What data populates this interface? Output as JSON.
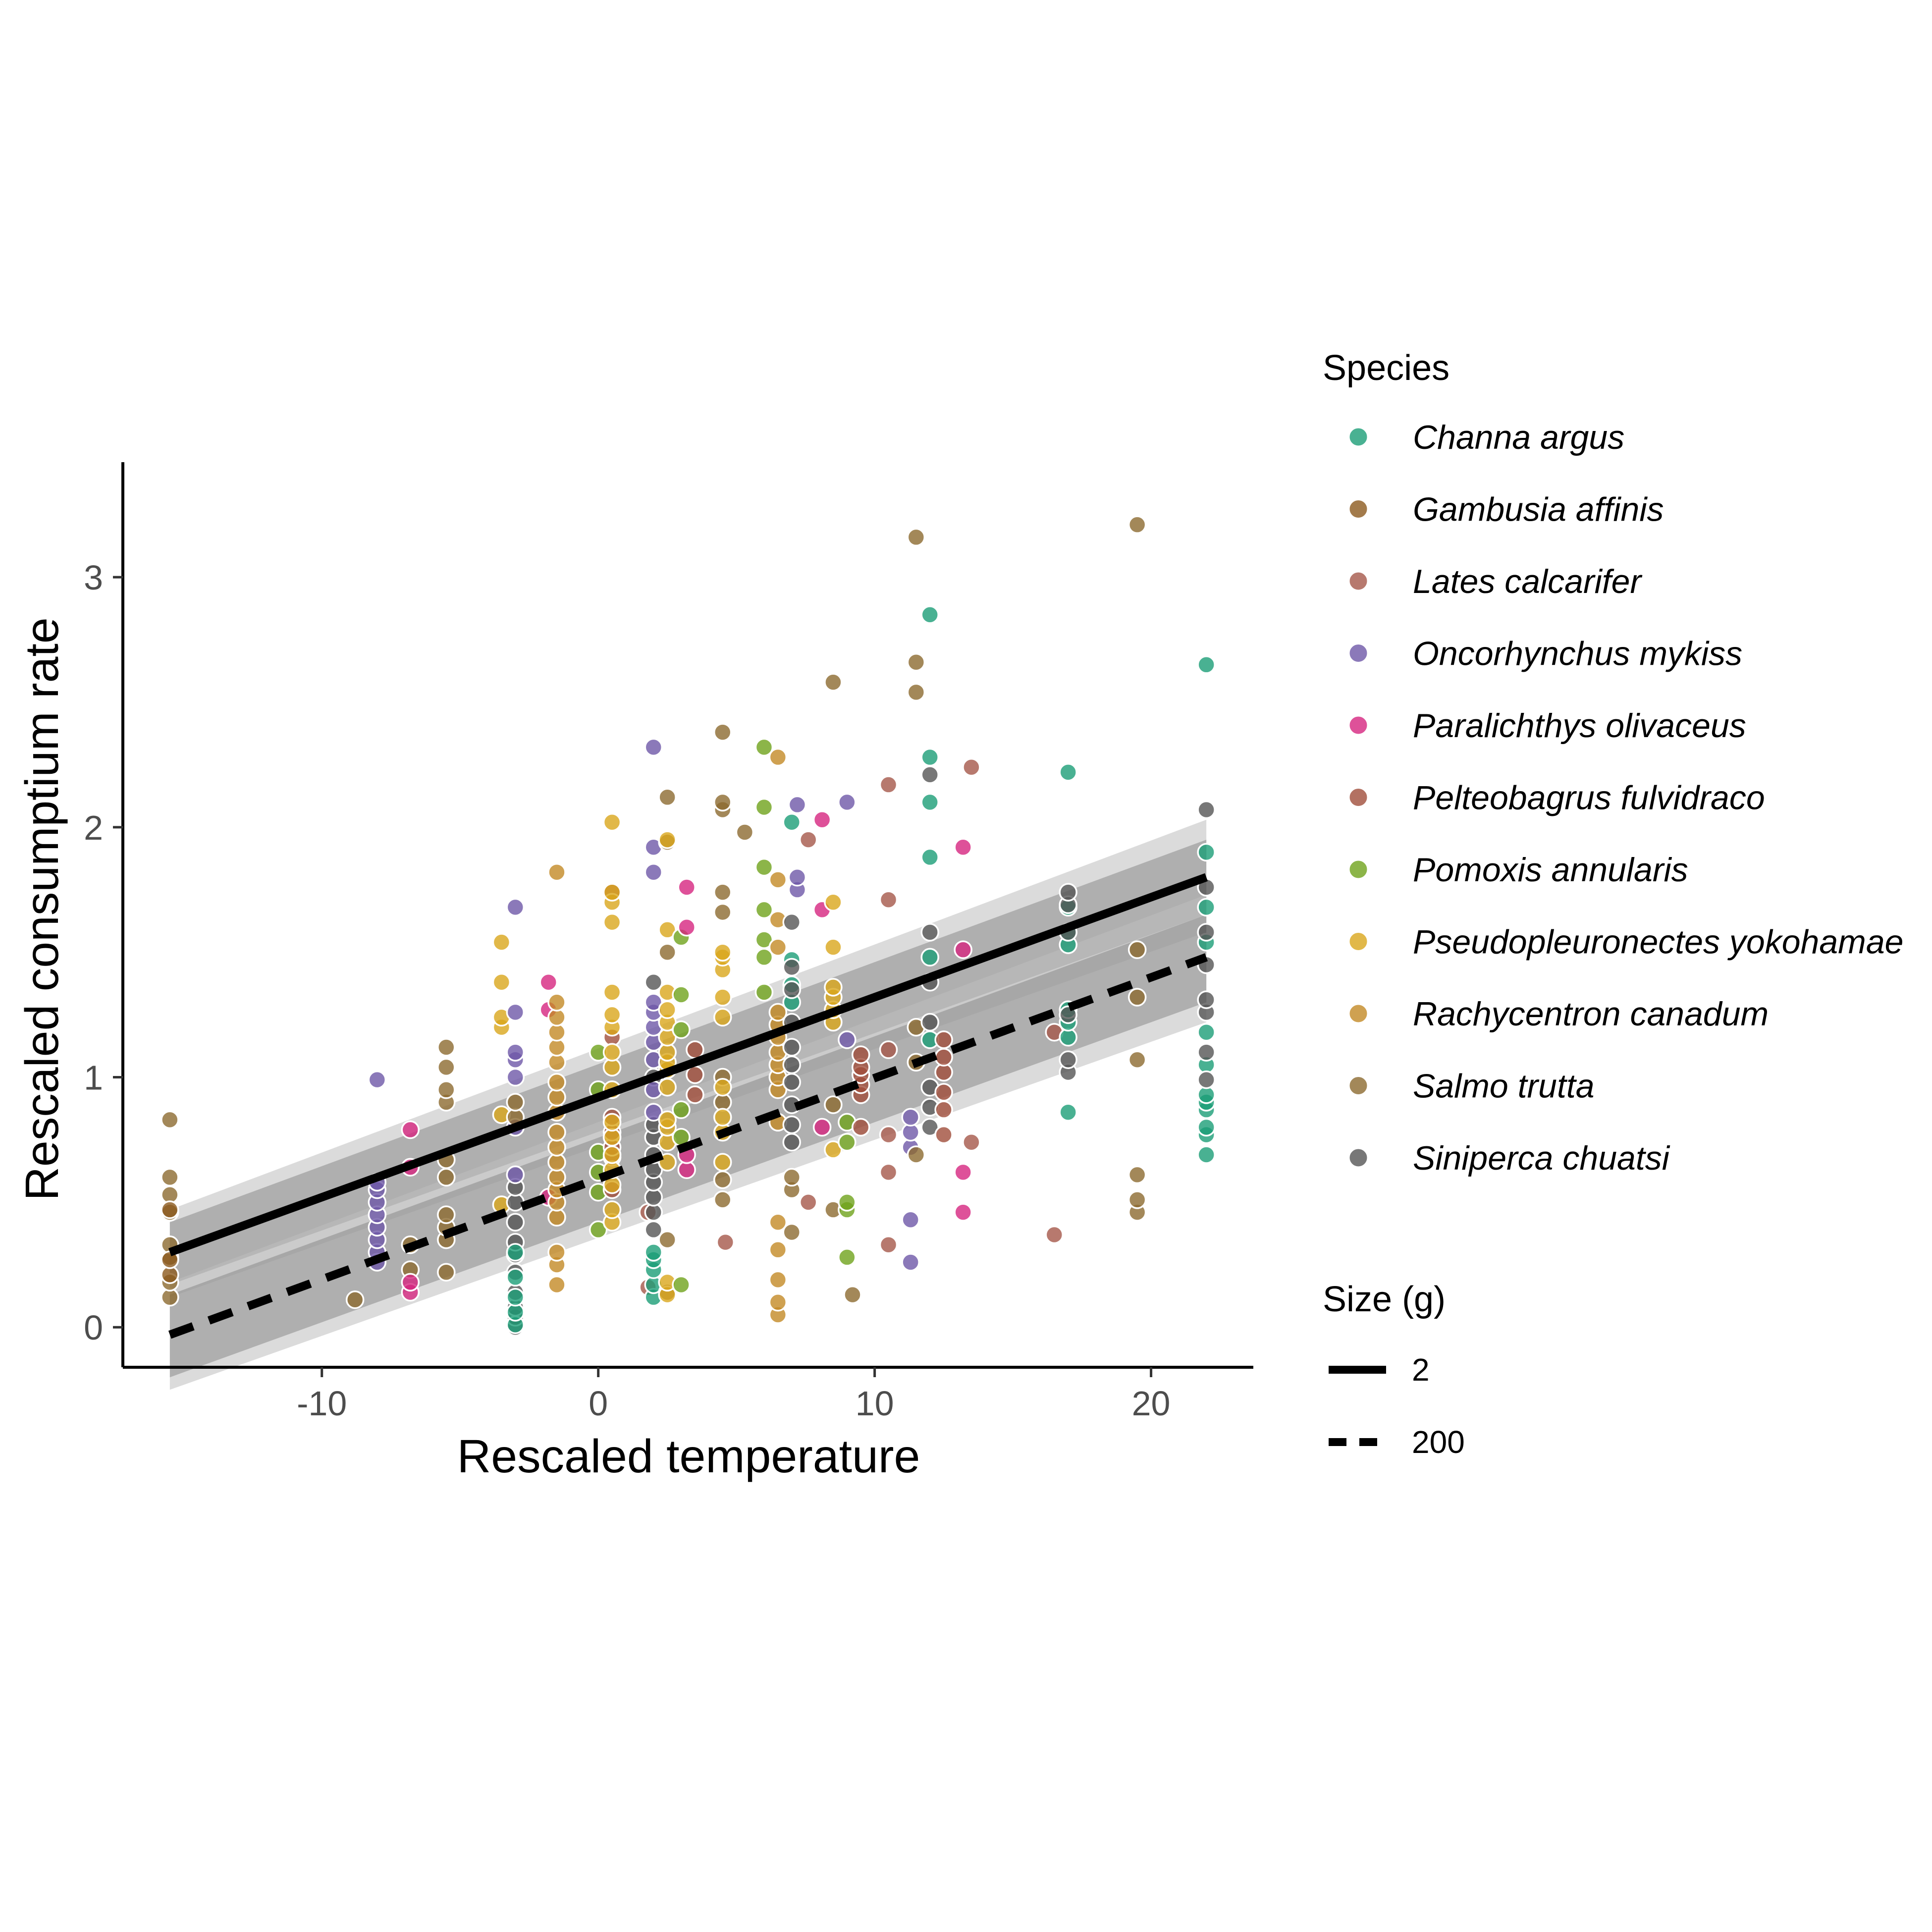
{
  "chart_data": {
    "type": "scatter",
    "xlabel": "Rescaled temperature",
    "ylabel": "Rescaled consumptium rate",
    "xlim": [
      -17.2,
      23.7
    ],
    "ylim": [
      -0.16,
      3.46
    ],
    "xticks": [
      -10,
      0,
      10,
      20
    ],
    "yticks": [
      0,
      1,
      2,
      3
    ],
    "grid": false,
    "legend_position": "right",
    "species_legend": {
      "title": "Species",
      "entries": [
        {
          "name": "Channa argus",
          "color": "#1b9e77"
        },
        {
          "name": "Gambusia affinis",
          "color": "#8c5a1e"
        },
        {
          "name": "Lates calcarifer",
          "color": "#a5584a"
        },
        {
          "name": "Oncorhynchus mykiss",
          "color": "#6e58a8"
        },
        {
          "name": "Paralichthys olivaceus",
          "color": "#d6257f"
        },
        {
          "name": "Pelteobagrus fulvidraco",
          "color": "#a04e3b"
        },
        {
          "name": "Pomoxis annularis",
          "color": "#6fa21c"
        },
        {
          "name": "Pseudopleuronectes yokohamae",
          "color": "#d9a61b"
        },
        {
          "name": "Rachycentron canadum",
          "color": "#c38925"
        },
        {
          "name": "Salmo trutta",
          "color": "#8c6a30"
        },
        {
          "name": "Siniperca chuatsi",
          "color": "#555555"
        }
      ]
    },
    "size_legend": {
      "title": "Size (g)",
      "entries": [
        {
          "label": "2",
          "linetype": "solid"
        },
        {
          "label": "200",
          "linetype": "dashed"
        }
      ]
    },
    "fit_lines": [
      {
        "size": "2",
        "linetype": "solid",
        "x": [
          -15.5,
          22
        ],
        "y": [
          0.3,
          1.8
        ],
        "ci_lower": [
          0.17,
          1.65
        ],
        "ci_upper": [
          0.42,
          1.95
        ],
        "ci_outer_lower": [
          0.12,
          1.58
        ],
        "ci_outer_upper": [
          0.47,
          2.03
        ]
      },
      {
        "size": "200",
        "linetype": "dashed",
        "x": [
          -15.5,
          22
        ],
        "y": [
          -0.03,
          1.48
        ],
        "ci_lower": [
          -0.2,
          1.3
        ],
        "ci_upper": [
          0.13,
          1.65
        ],
        "ci_outer_lower": [
          -0.25,
          1.22
        ],
        "ci_outer_upper": [
          0.18,
          1.73
        ]
      }
    ],
    "points": [
      {
        "species": "Salmo trutta",
        "x": -15.5,
        "y": [
          0.12,
          0.18,
          0.28,
          0.33,
          0.46,
          0.53,
          0.6,
          0.83
        ]
      },
      {
        "species": "Gambusia affinis",
        "x": -15.5,
        "y": [
          0.21,
          0.27,
          0.47
        ]
      },
      {
        "species": "Salmo trutta",
        "x": -8.8,
        "y": [
          0.11
        ]
      },
      {
        "species": "Oncorhynchus mykiss",
        "x": -8,
        "y": [
          0.26,
          0.3,
          0.35,
          0.4,
          0.45,
          0.5,
          0.55,
          0.58,
          0.99
        ]
      },
      {
        "species": "Salmo trutta",
        "x": -6.8,
        "y": [
          0.23,
          0.33
        ]
      },
      {
        "species": "Paralichthys olivaceus",
        "x": -6.8,
        "y": [
          0.14,
          0.18,
          0.64,
          0.79
        ]
      },
      {
        "species": "Salmo trutta",
        "x": -5.5,
        "y": [
          0.22,
          0.35,
          0.4,
          0.45,
          0.6,
          0.67,
          0.9,
          0.95,
          1.04,
          1.12
        ]
      },
      {
        "species": "Pseudopleuronectes yokohamae",
        "x": -3.5,
        "y": [
          0.49,
          0.85,
          1.2,
          1.24,
          1.38,
          1.54
        ]
      },
      {
        "species": "Siniperca chuatsi",
        "x": -3,
        "y": [
          0.0,
          0.04,
          0.08,
          0.14,
          0.22,
          0.29,
          0.34,
          0.42,
          0.5,
          0.56
        ]
      },
      {
        "species": "Channa argus",
        "x": -3,
        "y": [
          0.01,
          0.06,
          0.12,
          0.2,
          0.3
        ]
      },
      {
        "species": "Oncorhynchus mykiss",
        "x": -3,
        "y": [
          0.61,
          0.8,
          1.0,
          1.07,
          1.1,
          1.26,
          1.68
        ]
      },
      {
        "species": "Salmo trutta",
        "x": -3,
        "y": [
          0.84,
          0.9
        ]
      },
      {
        "species": "Paralichthys olivaceus",
        "x": -1.8,
        "y": [
          0.52,
          1.27,
          1.38
        ]
      },
      {
        "species": "Rachycentron canadum",
        "x": -1.5,
        "y": [
          0.17,
          0.25,
          0.3,
          0.44,
          0.5,
          0.55,
          0.6,
          0.66,
          0.72,
          0.78,
          0.86,
          0.92,
          0.98,
          1.06,
          1.12,
          1.18,
          1.24,
          1.3,
          1.82
        ]
      },
      {
        "species": "Pomoxis annularis",
        "x": 0,
        "y": [
          0.39,
          0.54,
          0.62,
          0.7,
          0.95,
          1.1
        ]
      },
      {
        "species": "Pelteobagrus fulvidraco",
        "x": 0.5,
        "y": [
          0.55,
          0.68,
          0.72,
          0.78,
          0.84,
          1.16,
          1.74
        ]
      },
      {
        "species": "Pseudopleuronectes yokohamae",
        "x": 0.5,
        "y": [
          0.42,
          0.47,
          0.57,
          0.63,
          0.69,
          0.76,
          0.82,
          0.95,
          1.04,
          1.1,
          1.2,
          1.25,
          1.34,
          1.62,
          1.7,
          1.74,
          2.02
        ]
      },
      {
        "species": "Lates calcarifer",
        "x": 1.8,
        "y": [
          0.16,
          0.46
        ]
      },
      {
        "species": "Channa argus",
        "x": 2,
        "y": [
          0.12,
          0.17,
          0.23,
          0.27,
          0.3
        ]
      },
      {
        "species": "Siniperca chuatsi",
        "x": 2,
        "y": [
          0.39,
          0.46,
          0.52,
          0.58,
          0.63,
          0.69,
          0.76,
          0.81,
          1.0,
          1.38
        ]
      },
      {
        "species": "Oncorhynchus mykiss",
        "x": 2,
        "y": [
          0.86,
          0.95,
          1.07,
          1.14,
          1.2,
          1.26,
          1.3,
          1.82,
          1.92,
          2.32
        ]
      },
      {
        "species": "Salmo trutta",
        "x": 2.5,
        "y": [
          0.14,
          0.35,
          1.5,
          1.94,
          2.12
        ]
      },
      {
        "species": "Pseudopleuronectes yokohamae",
        "x": 2.5,
        "y": [
          0.13,
          0.18,
          0.66,
          0.74,
          0.8,
          0.83,
          0.96,
          1.03,
          1.06,
          1.1,
          1.16,
          1.22,
          1.27,
          1.34,
          1.59,
          1.95
        ]
      },
      {
        "species": "Pomoxis annularis",
        "x": 3,
        "y": [
          0.17,
          0.76,
          0.87,
          1.19,
          1.33,
          1.56
        ]
      },
      {
        "species": "Paralichthys olivaceus",
        "x": 3.2,
        "y": [
          0.63,
          0.69,
          1.6,
          1.76
        ]
      },
      {
        "species": "Pelteobagrus fulvidraco",
        "x": 3.5,
        "y": [
          0.93,
          1.01,
          1.11
        ]
      },
      {
        "species": "Lates calcarifer",
        "x": 4.6,
        "y": [
          0.34
        ]
      },
      {
        "species": "Salmo trutta",
        "x": 4.5,
        "y": [
          0.51,
          0.59,
          0.9,
          1.0,
          1.66,
          1.74,
          2.07,
          2.1,
          2.38
        ]
      },
      {
        "species": "Pseudopleuronectes yokohamae",
        "x": 4.5,
        "y": [
          0.66,
          0.78,
          0.84,
          0.96,
          1.24,
          1.32,
          1.43,
          1.48,
          1.5
        ]
      },
      {
        "species": "Salmo trutta",
        "x": 5.3,
        "y": [
          1.98
        ]
      },
      {
        "species": "Pomoxis annularis",
        "x": 6,
        "y": [
          1.34,
          1.48,
          1.55,
          1.67,
          1.84,
          2.08,
          2.32
        ]
      },
      {
        "species": "Rachycentron canadum",
        "x": 6.5,
        "y": [
          0.05,
          0.1,
          0.19,
          0.31,
          0.42,
          0.82,
          0.95,
          1.0,
          1.05,
          1.1,
          1.16,
          1.21,
          1.26,
          1.52,
          1.63,
          1.79,
          2.28
        ]
      },
      {
        "species": "Channa argus",
        "x": 7,
        "y": [
          1.3,
          1.37,
          1.47,
          2.02
        ]
      },
      {
        "species": "Siniperca chuatsi",
        "x": 7,
        "y": [
          0.74,
          0.81,
          0.89,
          0.98,
          1.05,
          1.12,
          1.22,
          1.35,
          1.44,
          1.62
        ]
      },
      {
        "species": "Salmo trutta",
        "x": 7,
        "y": [
          0.38,
          0.55,
          0.6
        ]
      },
      {
        "species": "Oncorhynchus mykiss",
        "x": 7.2,
        "y": [
          1.75,
          1.8,
          2.09
        ]
      },
      {
        "species": "Lates calcarifer",
        "x": 7.6,
        "y": [
          0.5,
          1.95
        ]
      },
      {
        "species": "Paralichthys olivaceus",
        "x": 8.1,
        "y": [
          0.8,
          1.67,
          2.03
        ]
      },
      {
        "species": "Pseudopleuronectes yokohamae",
        "x": 8.5,
        "y": [
          0.71,
          1.22,
          1.27,
          1.32,
          1.36,
          1.52,
          1.7
        ]
      },
      {
        "species": "Salmo trutta",
        "x": 8.5,
        "y": [
          0.47,
          0.89,
          2.58
        ]
      },
      {
        "species": "Pomoxis annularis",
        "x": 9,
        "y": [
          0.28,
          0.47,
          0.5,
          0.74,
          0.82
        ]
      },
      {
        "species": "Oncorhynchus mykiss",
        "x": 9,
        "y": [
          1.15,
          2.1
        ]
      },
      {
        "species": "Pelteobagrus fulvidraco",
        "x": 9.5,
        "y": [
          0.8,
          0.93,
          0.97,
          1.01,
          1.04,
          1.09
        ]
      },
      {
        "species": "Salmo trutta",
        "x": 9.2,
        "y": [
          0.13
        ]
      },
      {
        "species": "Lates calcarifer",
        "x": 10.5,
        "y": [
          0.33,
          0.62,
          0.77,
          1.11,
          1.71,
          2.17
        ]
      },
      {
        "species": "Oncorhynchus mykiss",
        "x": 11.3,
        "y": [
          0.26,
          0.43,
          0.72,
          0.78,
          0.84
        ]
      },
      {
        "species": "Salmo trutta",
        "x": 11.5,
        "y": [
          0.69,
          1.06,
          1.2,
          2.54,
          2.66,
          3.16
        ]
      },
      {
        "species": "Channa argus",
        "x": 12,
        "y": [
          1.15,
          1.48,
          1.88,
          2.1,
          2.28,
          2.85
        ]
      },
      {
        "species": "Siniperca chuatsi",
        "x": 12,
        "y": [
          0.8,
          0.88,
          0.96,
          1.22,
          1.38,
          1.58,
          2.21
        ]
      },
      {
        "species": "Pelteobagrus fulvidraco",
        "x": 12.5,
        "y": [
          0.77,
          0.87,
          0.94,
          1.02,
          1.08,
          1.15
        ]
      },
      {
        "species": "Paralichthys olivaceus",
        "x": 13.2,
        "y": [
          0.46,
          0.62,
          1.51,
          1.92
        ]
      },
      {
        "species": "Lates calcarifer",
        "x": 13.5,
        "y": [
          0.74,
          2.24
        ]
      },
      {
        "species": "Lates calcarifer",
        "x": 16.5,
        "y": [
          0.37,
          1.18
        ]
      },
      {
        "species": "Channa argus",
        "x": 17,
        "y": [
          0.86,
          1.16,
          1.22,
          1.27,
          1.53,
          1.58,
          1.68,
          2.22
        ]
      },
      {
        "species": "Siniperca chuatsi",
        "x": 17,
        "y": [
          1.02,
          1.07,
          1.25,
          1.58,
          1.69,
          1.74
        ]
      },
      {
        "species": "Salmo trutta",
        "x": 19.5,
        "y": [
          0.46,
          0.51,
          0.61,
          1.07,
          1.32,
          1.51,
          3.21
        ]
      },
      {
        "species": "Channa argus",
        "x": 22,
        "y": [
          0.69,
          0.77,
          0.8,
          0.87,
          0.9,
          0.93,
          1.05,
          1.18,
          1.54,
          1.68,
          1.9,
          2.65
        ]
      },
      {
        "species": "Siniperca chuatsi",
        "x": 22,
        "y": [
          0.99,
          1.1,
          1.26,
          1.31,
          1.45,
          1.58,
          1.76,
          2.07
        ]
      }
    ]
  }
}
